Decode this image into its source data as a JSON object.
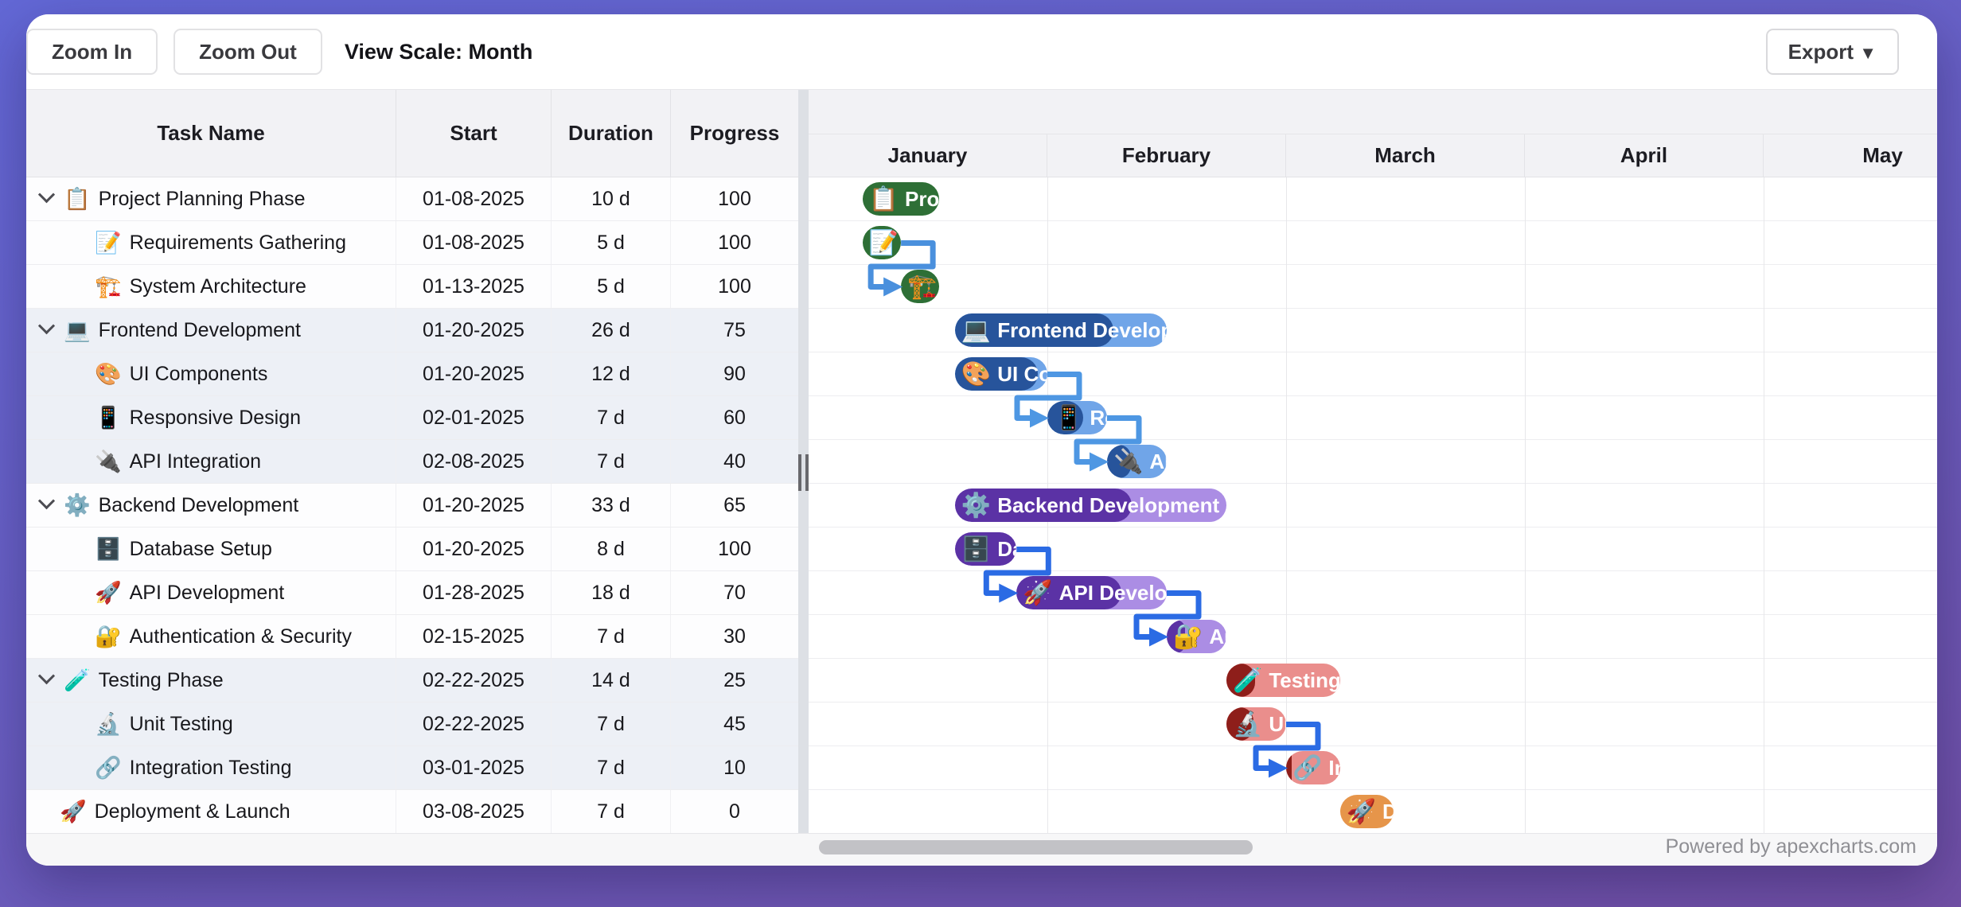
{
  "toolbar": {
    "zoom_in": "Zoom In",
    "zoom_out": "Zoom Out",
    "view_scale_label": "View Scale: Month",
    "export_label": "Export",
    "export_caret": "▼"
  },
  "table": {
    "columns": [
      "Task Name",
      "Start",
      "Duration",
      "Progress"
    ]
  },
  "timeline": {
    "months": [
      {
        "label": "January",
        "days": 31
      },
      {
        "label": "February",
        "days": 28
      },
      {
        "label": "March",
        "days": 31
      },
      {
        "label": "April",
        "days": 30
      },
      {
        "label": "May",
        "days": 31
      }
    ],
    "year": 2025
  },
  "groups": {
    "planning": {
      "dark": "#2e6f36",
      "light": "#7fbc85",
      "connector": "#4a90dd"
    },
    "frontend": {
      "dark": "#27549b",
      "light": "#70a5e8",
      "connector": "#4e97e3"
    },
    "backend": {
      "dark": "#5b32a5",
      "light": "#ab8de4",
      "connector": "#2b6be4"
    },
    "testing": {
      "dark": "#8e1e1a",
      "light": "#ea8e8c",
      "connector": "#2b6be4"
    },
    "deploy": {
      "dark": "#b06c22",
      "light": "#e6954a",
      "connector": "#2b6be4"
    }
  },
  "tasks": [
    {
      "name": "Project Planning Phase",
      "icon": "📋",
      "icon_name": "clipboard-icon",
      "start": "01-08-2025",
      "duration": "10 d",
      "progress": "100",
      "progress_pct": 100,
      "level": 0,
      "group_row": true,
      "shaded": false,
      "color_group": "planning"
    },
    {
      "name": "Requirements Gathering",
      "icon": "📝",
      "icon_name": "memo-icon",
      "start": "01-08-2025",
      "duration": "5 d",
      "progress": "100",
      "progress_pct": 100,
      "level": 1,
      "group_row": false,
      "shaded": false,
      "color_group": "planning"
    },
    {
      "name": "System Architecture",
      "icon": "🏗️",
      "icon_name": "crane-icon",
      "start": "01-13-2025",
      "duration": "5 d",
      "progress": "100",
      "progress_pct": 100,
      "level": 1,
      "group_row": false,
      "shaded": false,
      "color_group": "planning"
    },
    {
      "name": "Frontend Development",
      "icon": "💻",
      "icon_name": "laptop-icon",
      "start": "01-20-2025",
      "duration": "26 d",
      "progress": "75",
      "progress_pct": 75,
      "level": 0,
      "group_row": true,
      "shaded": true,
      "color_group": "frontend"
    },
    {
      "name": "UI Components",
      "icon": "🎨",
      "icon_name": "palette-icon",
      "start": "01-20-2025",
      "duration": "12 d",
      "progress": "90",
      "progress_pct": 90,
      "level": 1,
      "group_row": false,
      "shaded": true,
      "color_group": "frontend"
    },
    {
      "name": "Responsive Design",
      "icon": "📱",
      "icon_name": "mobile-phone-icon",
      "start": "02-01-2025",
      "duration": "7 d",
      "progress": "60",
      "progress_pct": 60,
      "level": 1,
      "group_row": false,
      "shaded": true,
      "color_group": "frontend"
    },
    {
      "name": "API Integration",
      "icon": "🔌",
      "icon_name": "plug-icon",
      "start": "02-08-2025",
      "duration": "7 d",
      "progress": "40",
      "progress_pct": 40,
      "level": 1,
      "group_row": false,
      "shaded": true,
      "color_group": "frontend"
    },
    {
      "name": "Backend Development",
      "icon": "⚙️",
      "icon_name": "gear-icon",
      "start": "01-20-2025",
      "duration": "33 d",
      "progress": "65",
      "progress_pct": 65,
      "level": 0,
      "group_row": true,
      "shaded": false,
      "color_group": "backend"
    },
    {
      "name": "Database Setup",
      "icon": "🗄️",
      "icon_name": "file-cabinet-icon",
      "start": "01-20-2025",
      "duration": "8 d",
      "progress": "100",
      "progress_pct": 100,
      "level": 1,
      "group_row": false,
      "shaded": false,
      "color_group": "backend"
    },
    {
      "name": "API Development",
      "icon": "🚀",
      "icon_name": "rocket-icon",
      "start": "01-28-2025",
      "duration": "18 d",
      "progress": "70",
      "progress_pct": 70,
      "level": 1,
      "group_row": false,
      "shaded": false,
      "color_group": "backend"
    },
    {
      "name": "Authentication & Security",
      "icon": "🔐",
      "icon_name": "locked-key-icon",
      "start": "02-15-2025",
      "duration": "7 d",
      "progress": "30",
      "progress_pct": 30,
      "level": 1,
      "group_row": false,
      "shaded": false,
      "color_group": "backend"
    },
    {
      "name": "Testing Phase",
      "icon": "🧪",
      "icon_name": "test-tube-icon",
      "start": "02-22-2025",
      "duration": "14 d",
      "progress": "25",
      "progress_pct": 25,
      "level": 0,
      "group_row": true,
      "shaded": true,
      "color_group": "testing"
    },
    {
      "name": "Unit Testing",
      "icon": "🔬",
      "icon_name": "microscope-icon",
      "start": "02-22-2025",
      "duration": "7 d",
      "progress": "45",
      "progress_pct": 45,
      "level": 1,
      "group_row": false,
      "shaded": true,
      "color_group": "testing"
    },
    {
      "name": "Integration Testing",
      "icon": "🔗",
      "icon_name": "link-icon",
      "start": "03-01-2025",
      "duration": "7 d",
      "progress": "10",
      "progress_pct": 10,
      "level": 1,
      "group_row": false,
      "shaded": true,
      "color_group": "testing"
    },
    {
      "name": "Deployment & Launch",
      "icon": "🚀",
      "icon_name": "rocket-icon",
      "start": "03-08-2025",
      "duration": "7 d",
      "progress": "0",
      "progress_pct": 0,
      "level": 0,
      "group_row": false,
      "shaded": false,
      "color_group": "deploy"
    }
  ],
  "dependencies": [
    {
      "from": 1,
      "to": 2
    },
    {
      "from": 4,
      "to": 5
    },
    {
      "from": 5,
      "to": 6
    },
    {
      "from": 8,
      "to": 9
    },
    {
      "from": 9,
      "to": 10
    },
    {
      "from": 12,
      "to": 13
    }
  ],
  "footer": {
    "credit": "Powered by apexcharts.com"
  },
  "colors": {
    "background_top": "#6368d6",
    "background_bottom": "#7150a5",
    "header_bg": "#f2f2f5",
    "shaded_row_bg": "#edf0f6",
    "scroll_thumb": "#c2c2c6"
  }
}
